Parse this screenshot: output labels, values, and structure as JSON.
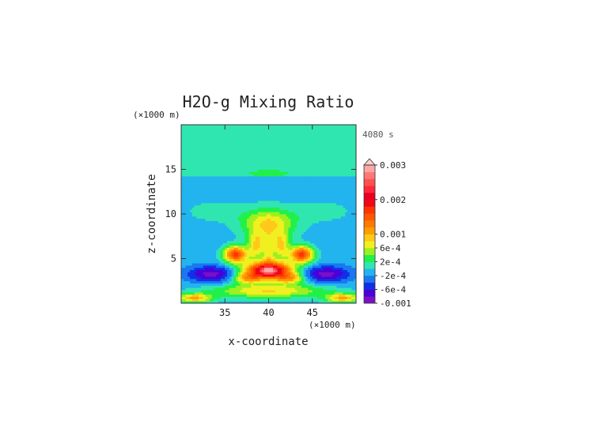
{
  "chart_data": {
    "type": "heatmap",
    "title": "H2O-g Mixing Ratio",
    "xlabel": "x-coordinate",
    "ylabel": "z-coordinate",
    "x_unit": "(×1000 m)",
    "y_unit": "(×1000 m)",
    "time_label": "4080 s",
    "xlim": [
      30,
      50
    ],
    "ylim": [
      0,
      20
    ],
    "x_ticks": [
      "35",
      "40",
      "45"
    ],
    "y_ticks": [
      "5",
      "10",
      "15"
    ],
    "colorbar": {
      "labels": [
        "0.003",
        "0.002",
        "0.001",
        "6e-4",
        "2e-4",
        "-2e-4",
        "-6e-4",
        "-0.001"
      ],
      "levels": [
        -0.001,
        -0.0008,
        -0.0006,
        -0.0004,
        -0.0002,
        0,
        0.0002,
        0.0004,
        0.0006,
        0.0008,
        0.001,
        0.0012,
        0.0014,
        0.0016,
        0.0018,
        0.002,
        0.0022,
        0.0024,
        0.0026,
        0.0028,
        0.003
      ],
      "colors": [
        "#7b10c8",
        "#4a00d8",
        "#1030e8",
        "#1a78f0",
        "#22b4ee",
        "#30e6b0",
        "#22f04a",
        "#9cf020",
        "#f0f020",
        "#ffc81a",
        "#ff9c00",
        "#ff7a00",
        "#ff5800",
        "#ff3500",
        "#f00818",
        "#e80020",
        "#ff2838",
        "#ff5050",
        "#ff7878",
        "#ffa6a6"
      ]
    }
  }
}
